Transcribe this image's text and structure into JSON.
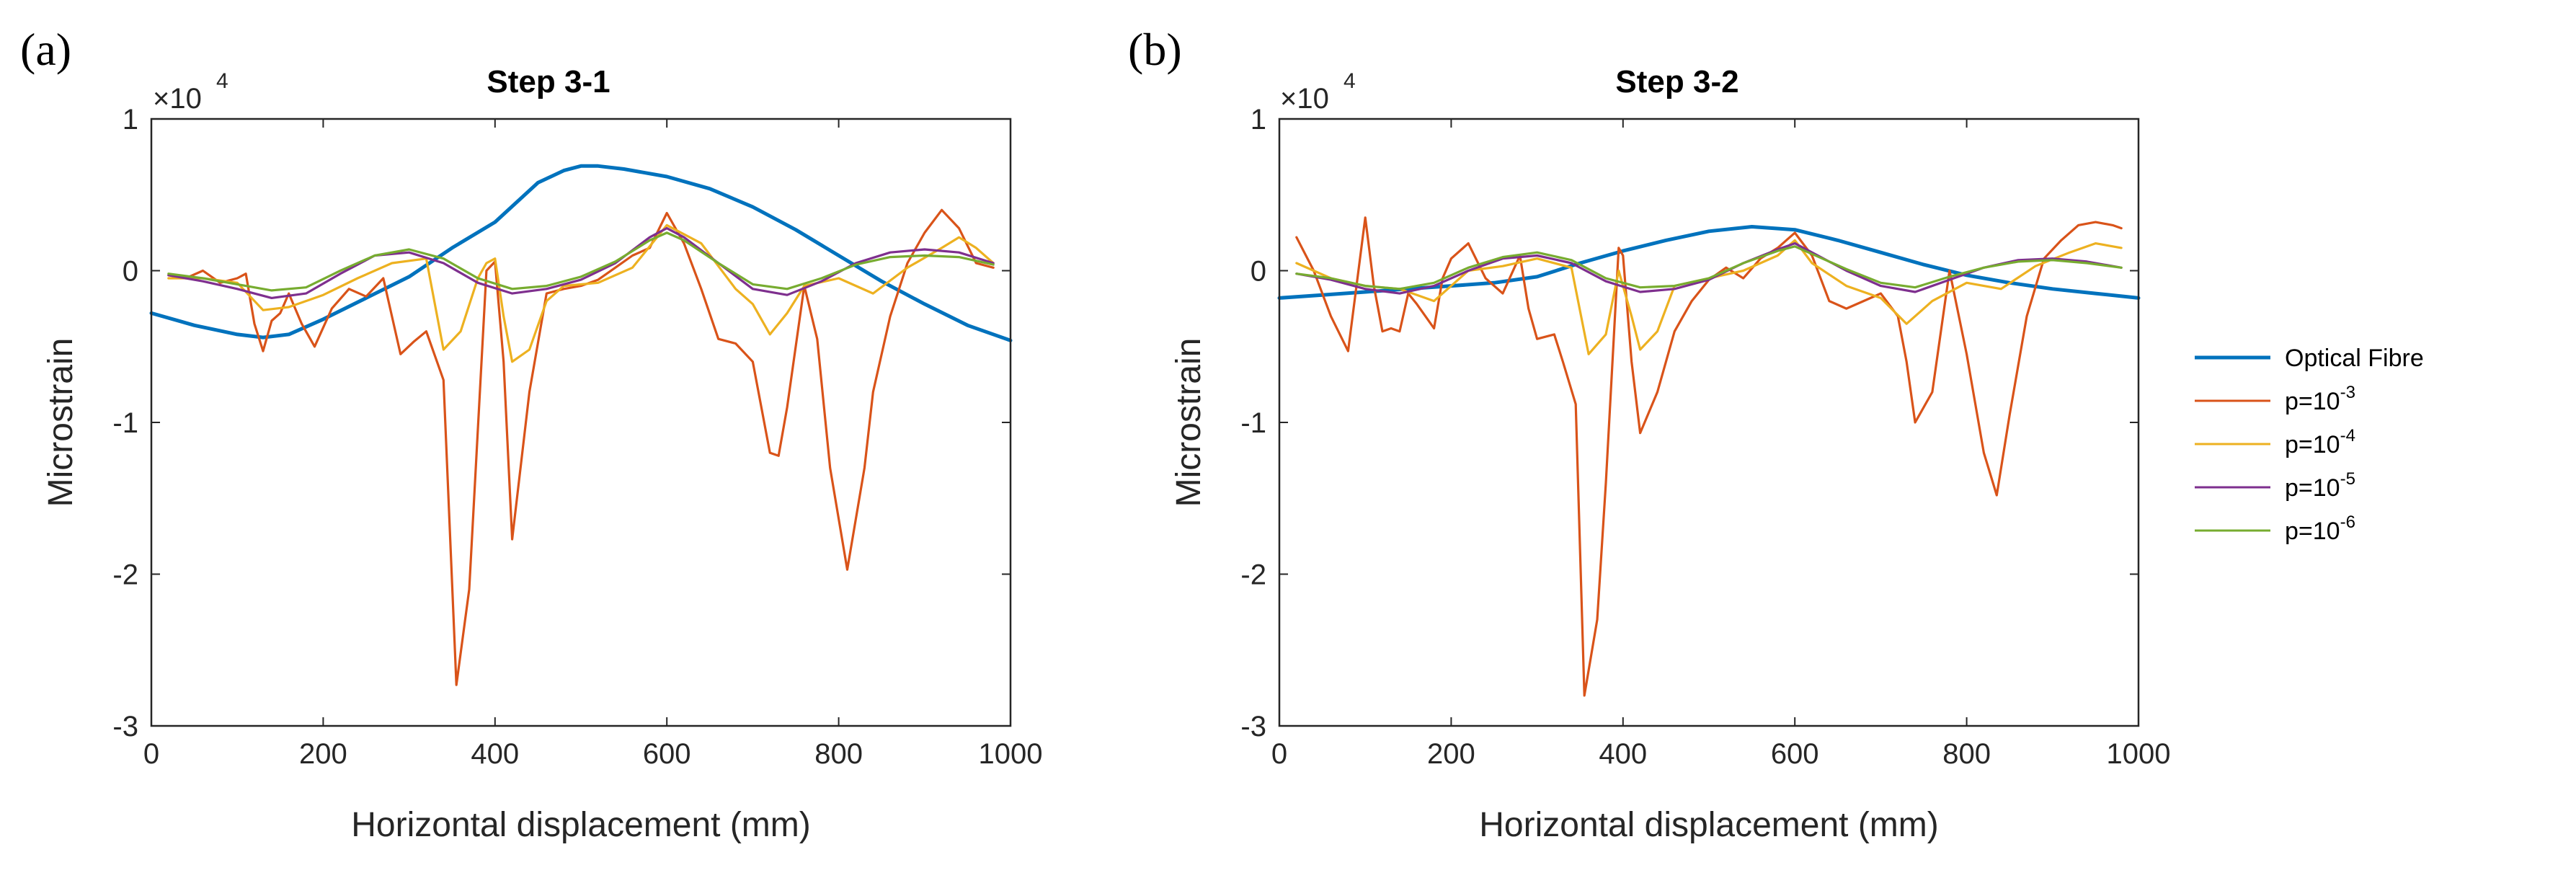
{
  "legend": {
    "items": [
      {
        "label": "Optical Fibre",
        "color": "#0072BD"
      },
      {
        "label": "p=10",
        "sup": "-3",
        "color": "#D95319"
      },
      {
        "label": "p=10",
        "sup": "-4",
        "color": "#EDB120"
      },
      {
        "label": "p=10",
        "sup": "-5",
        "color": "#7E2F8E"
      },
      {
        "label": "p=10",
        "sup": "-6",
        "color": "#77AC30"
      }
    ]
  },
  "chart_data": [
    {
      "type": "line",
      "panel_label": "(a)",
      "title": "Step 3-1",
      "xlabel": "Horizontal displacement (mm)",
      "ylabel": "Microstrain",
      "y_multiplier": "×10",
      "y_multiplier_exp": "4",
      "xlim": [
        0,
        1000
      ],
      "ylim": [
        -3,
        1
      ],
      "xticks": [
        0,
        200,
        400,
        600,
        800,
        1000
      ],
      "yticks": [
        -3,
        -2,
        -1,
        0,
        1
      ],
      "series": [
        {
          "name": "Optical Fibre",
          "color": "#0072BD",
          "x": [
            0,
            50,
            100,
            130,
            160,
            200,
            250,
            300,
            350,
            400,
            450,
            480,
            500,
            520,
            550,
            600,
            650,
            700,
            750,
            800,
            850,
            900,
            950,
            1000
          ],
          "y": [
            -0.28,
            -0.36,
            -0.42,
            -0.44,
            -0.42,
            -0.32,
            -0.18,
            -0.04,
            0.15,
            0.32,
            0.58,
            0.66,
            0.69,
            0.69,
            0.67,
            0.62,
            0.54,
            0.42,
            0.27,
            0.1,
            -0.07,
            -0.22,
            -0.36,
            -0.46
          ]
        },
        {
          "name": "p=10^-3",
          "color": "#D95319",
          "x": [
            20,
            40,
            60,
            80,
            100,
            110,
            120,
            130,
            140,
            150,
            160,
            175,
            190,
            210,
            230,
            250,
            270,
            290,
            305,
            320,
            340,
            355,
            370,
            390,
            400,
            410,
            420,
            440,
            460,
            480,
            500,
            520,
            540,
            560,
            580,
            600,
            620,
            640,
            660,
            680,
            700,
            720,
            730,
            740,
            760,
            775,
            790,
            810,
            830,
            840,
            860,
            880,
            900,
            920,
            940,
            960,
            980
          ],
          "y": [
            -0.03,
            -0.05,
            0.0,
            -0.08,
            -0.05,
            -0.02,
            -0.35,
            -0.53,
            -0.33,
            -0.28,
            -0.15,
            -0.35,
            -0.5,
            -0.25,
            -0.12,
            -0.17,
            -0.05,
            -0.55,
            -0.47,
            -0.4,
            -0.72,
            -2.73,
            -2.1,
            0.0,
            0.06,
            -0.6,
            -1.77,
            -0.8,
            -0.15,
            -0.12,
            -0.1,
            -0.06,
            0.02,
            0.1,
            0.15,
            0.38,
            0.18,
            -0.12,
            -0.45,
            -0.48,
            -0.6,
            -1.2,
            -1.22,
            -0.9,
            -0.1,
            -0.45,
            -1.3,
            -1.97,
            -1.3,
            -0.8,
            -0.3,
            0.05,
            0.25,
            0.4,
            0.28,
            0.05,
            0.02
          ]
        },
        {
          "name": "p=10^-4",
          "color": "#EDB120",
          "x": [
            20,
            60,
            100,
            130,
            160,
            200,
            240,
            280,
            320,
            340,
            360,
            380,
            390,
            400,
            410,
            420,
            440,
            460,
            480,
            520,
            560,
            600,
            640,
            680,
            700,
            720,
            740,
            760,
            800,
            840,
            880,
            920,
            940,
            960,
            980
          ],
          "y": [
            -0.05,
            -0.05,
            -0.08,
            -0.26,
            -0.24,
            -0.16,
            -0.05,
            0.05,
            0.08,
            -0.52,
            -0.4,
            -0.05,
            0.05,
            0.08,
            -0.3,
            -0.6,
            -0.52,
            -0.2,
            -0.1,
            -0.08,
            0.02,
            0.3,
            0.18,
            -0.12,
            -0.22,
            -0.42,
            -0.28,
            -0.1,
            -0.05,
            -0.15,
            0.02,
            0.15,
            0.22,
            0.15,
            0.05
          ]
        },
        {
          "name": "p=10^-5",
          "color": "#7E2F8E",
          "x": [
            20,
            60,
            100,
            140,
            180,
            220,
            260,
            300,
            340,
            380,
            420,
            460,
            500,
            540,
            580,
            600,
            620,
            660,
            700,
            740,
            780,
            820,
            860,
            900,
            940,
            980
          ],
          "y": [
            -0.03,
            -0.07,
            -0.12,
            -0.18,
            -0.15,
            -0.02,
            0.1,
            0.12,
            0.05,
            -0.08,
            -0.15,
            -0.12,
            -0.06,
            0.05,
            0.22,
            0.28,
            0.22,
            0.05,
            -0.12,
            -0.16,
            -0.07,
            0.05,
            0.12,
            0.14,
            0.12,
            0.05
          ]
        },
        {
          "name": "p=10^-6",
          "color": "#77AC30",
          "x": [
            20,
            60,
            100,
            140,
            180,
            220,
            260,
            300,
            340,
            380,
            420,
            460,
            500,
            540,
            580,
            600,
            620,
            660,
            700,
            740,
            780,
            820,
            860,
            900,
            940,
            980
          ],
          "y": [
            -0.02,
            -0.05,
            -0.09,
            -0.13,
            -0.11,
            0.0,
            0.1,
            0.14,
            0.08,
            -0.05,
            -0.12,
            -0.1,
            -0.04,
            0.06,
            0.2,
            0.25,
            0.2,
            0.05,
            -0.09,
            -0.12,
            -0.05,
            0.04,
            0.09,
            0.1,
            0.09,
            0.04
          ]
        }
      ]
    },
    {
      "type": "line",
      "panel_label": "(b)",
      "title": "Step 3-2",
      "xlabel": "Horizontal displacement (mm)",
      "ylabel": "Microstrain",
      "y_multiplier": "×10",
      "y_multiplier_exp": "4",
      "xlim": [
        0,
        1000
      ],
      "ylim": [
        -3,
        1
      ],
      "xticks": [
        0,
        200,
        400,
        600,
        800,
        1000
      ],
      "yticks": [
        -3,
        -2,
        -1,
        0,
        1
      ],
      "series": [
        {
          "name": "Optical Fibre",
          "color": "#0072BD",
          "x": [
            0,
            50,
            100,
            150,
            200,
            250,
            300,
            350,
            400,
            450,
            500,
            550,
            600,
            650,
            700,
            750,
            800,
            850,
            900,
            950,
            1000
          ],
          "y": [
            -0.18,
            -0.16,
            -0.14,
            -0.12,
            -0.1,
            -0.08,
            -0.04,
            0.05,
            0.13,
            0.2,
            0.26,
            0.29,
            0.27,
            0.2,
            0.12,
            0.04,
            -0.03,
            -0.08,
            -0.12,
            -0.15,
            -0.18
          ]
        },
        {
          "name": "p=10^-3",
          "color": "#D95319",
          "x": [
            20,
            40,
            60,
            80,
            100,
            110,
            120,
            130,
            140,
            150,
            160,
            180,
            190,
            200,
            220,
            240,
            260,
            280,
            290,
            300,
            320,
            330,
            345,
            355,
            370,
            380,
            395,
            400,
            410,
            420,
            440,
            460,
            480,
            500,
            520,
            540,
            560,
            580,
            600,
            620,
            640,
            660,
            680,
            700,
            720,
            730,
            740,
            760,
            780,
            800,
            820,
            835,
            850,
            870,
            890,
            910,
            930,
            950,
            970,
            980
          ],
          "y": [
            0.22,
            0.0,
            -0.3,
            -0.53,
            0.35,
            -0.1,
            -0.4,
            -0.38,
            -0.4,
            -0.15,
            -0.22,
            -0.38,
            -0.05,
            0.08,
            0.18,
            -0.05,
            -0.15,
            0.1,
            -0.25,
            -0.45,
            -0.42,
            -0.6,
            -0.88,
            -2.8,
            -2.3,
            -1.4,
            0.15,
            0.1,
            -0.6,
            -1.07,
            -0.8,
            -0.4,
            -0.2,
            -0.06,
            0.02,
            -0.05,
            0.08,
            0.15,
            0.25,
            0.1,
            -0.2,
            -0.25,
            -0.2,
            -0.15,
            -0.3,
            -0.6,
            -1.0,
            -0.8,
            0.0,
            -0.55,
            -1.2,
            -1.48,
            -0.95,
            -0.3,
            0.08,
            0.2,
            0.3,
            0.32,
            0.3,
            0.28
          ]
        },
        {
          "name": "p=10^-4",
          "color": "#EDB120",
          "x": [
            20,
            60,
            100,
            140,
            180,
            220,
            260,
            300,
            340,
            360,
            380,
            395,
            410,
            420,
            440,
            460,
            500,
            540,
            580,
            600,
            620,
            660,
            700,
            730,
            760,
            800,
            840,
            880,
            920,
            950,
            980
          ],
          "y": [
            0.05,
            -0.05,
            -0.1,
            -0.12,
            -0.2,
            0.0,
            0.03,
            0.08,
            0.02,
            -0.55,
            -0.42,
            0.0,
            -0.3,
            -0.52,
            -0.4,
            -0.1,
            -0.05,
            0.0,
            0.1,
            0.2,
            0.05,
            -0.1,
            -0.18,
            -0.35,
            -0.2,
            -0.08,
            -0.12,
            0.03,
            0.12,
            0.18,
            0.15
          ]
        },
        {
          "name": "p=10^-5",
          "color": "#7E2F8E",
          "x": [
            20,
            60,
            100,
            140,
            180,
            220,
            260,
            300,
            340,
            380,
            420,
            460,
            500,
            540,
            580,
            600,
            620,
            660,
            700,
            740,
            780,
            820,
            860,
            900,
            940,
            980
          ],
          "y": [
            -0.02,
            -0.06,
            -0.12,
            -0.15,
            -0.1,
            0.0,
            0.08,
            0.1,
            0.05,
            -0.07,
            -0.14,
            -0.12,
            -0.06,
            0.05,
            0.14,
            0.18,
            0.12,
            0.0,
            -0.1,
            -0.14,
            -0.06,
            0.02,
            0.07,
            0.08,
            0.06,
            0.02
          ]
        },
        {
          "name": "p=10^-6",
          "color": "#77AC30",
          "x": [
            20,
            60,
            100,
            140,
            180,
            220,
            260,
            300,
            340,
            380,
            420,
            460,
            500,
            540,
            580,
            600,
            620,
            660,
            700,
            740,
            780,
            820,
            860,
            900,
            940,
            980
          ],
          "y": [
            -0.02,
            -0.05,
            -0.1,
            -0.12,
            -0.08,
            0.02,
            0.09,
            0.12,
            0.07,
            -0.05,
            -0.11,
            -0.1,
            -0.05,
            0.05,
            0.13,
            0.16,
            0.11,
            0.01,
            -0.08,
            -0.11,
            -0.04,
            0.02,
            0.06,
            0.07,
            0.05,
            0.02
          ]
        }
      ]
    }
  ]
}
